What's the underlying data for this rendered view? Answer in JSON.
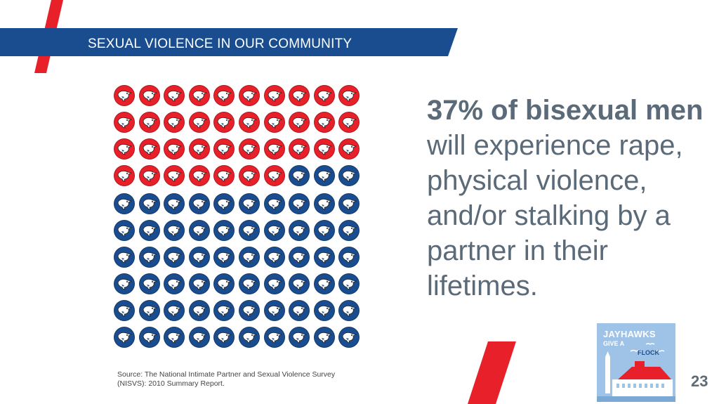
{
  "header": {
    "title": "SEXUAL VIOLENCE IN OUR COMMUNITY"
  },
  "stat": {
    "bold_part": "37% of bisexual men",
    "rest": " will experience rape, physical violence, and/or stalking by a partner in their lifetimes."
  },
  "pictogram": {
    "total": 100,
    "highlighted": 37,
    "columns": 10,
    "icon": "jayhawk-icon",
    "colors": {
      "highlighted": "#e8202a",
      "other": "#1a4d8f"
    }
  },
  "source": "Source: The National Intimate Partner and Sexual Violence Survey (NISVS): 2010 Summary Report.",
  "logo": {
    "line1": "JAYHAWKS",
    "line2": "GIVE A",
    "line3": "FLOCK"
  },
  "page_number": "23",
  "colors": {
    "brand_blue": "#1a4d8f",
    "brand_red": "#e8202a",
    "text_gray": "#5a6a78"
  }
}
